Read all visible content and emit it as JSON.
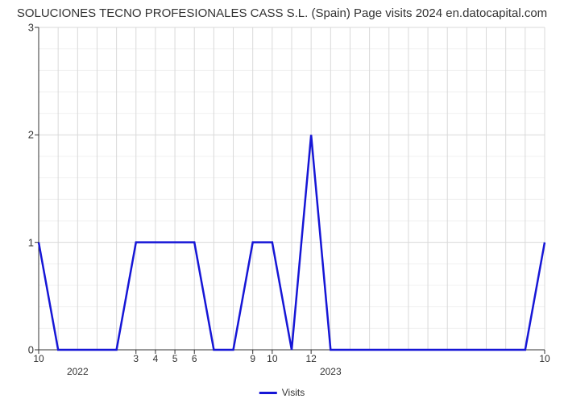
{
  "chart": {
    "type": "line",
    "title": "SOLUCIONES TECNO PROFESIONALES CASS S.L. (Spain) Page visits 2024 en.datocapital.com",
    "title_fontsize": 15,
    "title_color": "#333333",
    "background_color": "#ffffff",
    "plot_background": "#ffffff",
    "line_color": "#1616d6",
    "line_width": 2.5,
    "grid_minor_color": "#f0f0f0",
    "grid_major_color": "#d9d9d9",
    "axis_line_color": "#333333",
    "tick_label_color": "#333333",
    "tick_label_fontsize": 13,
    "x_index_range": [
      0,
      26
    ],
    "ylim": [
      0,
      3
    ],
    "ytick_step": 1,
    "y_minor_divisions": 5,
    "y_ticks": [
      0,
      1,
      2,
      3
    ],
    "x_ticks": [
      {
        "idx": 0,
        "label": "10"
      },
      {
        "idx": 5,
        "label": "3"
      },
      {
        "idx": 6,
        "label": "4"
      },
      {
        "idx": 7,
        "label": "5"
      },
      {
        "idx": 8,
        "label": "6"
      },
      {
        "idx": 11,
        "label": "9"
      },
      {
        "idx": 12,
        "label": "10"
      },
      {
        "idx": 14,
        "label": "12"
      },
      {
        "idx": 26,
        "label": "10"
      }
    ],
    "x_year_labels": [
      {
        "idx": 2,
        "label": "2022"
      },
      {
        "idx": 15,
        "label": "2023"
      }
    ],
    "series": {
      "name": "Visits",
      "points": [
        {
          "x": 0,
          "y": 1
        },
        {
          "x": 1,
          "y": 0
        },
        {
          "x": 4,
          "y": 0
        },
        {
          "x": 5,
          "y": 1
        },
        {
          "x": 8,
          "y": 1
        },
        {
          "x": 9,
          "y": 0
        },
        {
          "x": 10,
          "y": 0
        },
        {
          "x": 11,
          "y": 1
        },
        {
          "x": 12,
          "y": 1
        },
        {
          "x": 13,
          "y": 0
        },
        {
          "x": 14,
          "y": 2
        },
        {
          "x": 15,
          "y": 0
        },
        {
          "x": 25,
          "y": 0
        },
        {
          "x": 26,
          "y": 1
        }
      ]
    },
    "legend": {
      "label": "Visits",
      "swatch_color": "#1616d6"
    }
  }
}
